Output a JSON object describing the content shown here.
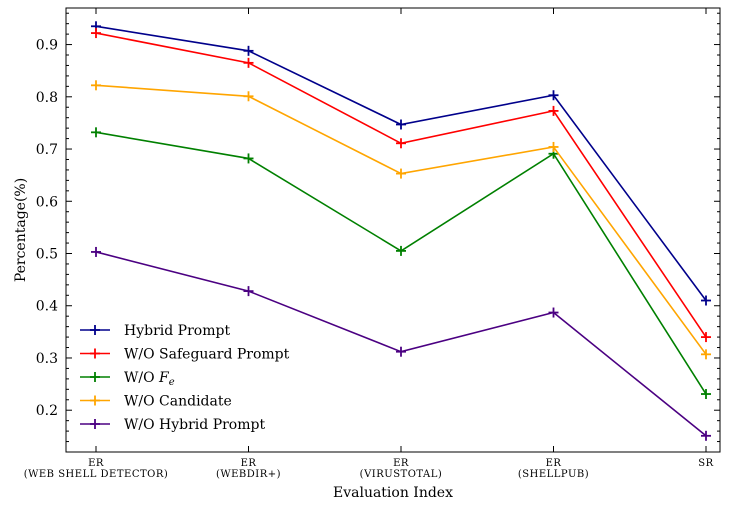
{
  "chart_data": {
    "type": "line",
    "categories": [
      [
        "ER",
        "(WEB SHELL DETECTOR)"
      ],
      [
        "ER",
        "(WEBDIR+)"
      ],
      [
        "ER",
        "(VIRUSTOTAL)"
      ],
      [
        "ER",
        "(SHELLPUB)"
      ],
      [
        "SR",
        ""
      ]
    ],
    "xlabel": "Evaluation Index",
    "ylabel": "Percentage(%)",
    "ylim": [
      0.12,
      0.97
    ],
    "yticks": [
      0.2,
      0.3,
      0.4,
      0.5,
      0.6,
      0.7,
      0.8,
      0.9
    ],
    "ytick_labels": [
      "0.2",
      "0.3",
      "0.4",
      "0.5",
      "0.6",
      "0.7",
      "0.8",
      "0.9"
    ],
    "legend_position": "lower-left",
    "grid": false,
    "series": [
      {
        "name": "Hybrid Prompt",
        "color": "#00008b",
        "values": [
          0.935,
          0.888,
          0.747,
          0.803,
          0.41
        ]
      },
      {
        "name": "W/O Safeguard Prompt",
        "color": "#ff0000",
        "values": [
          0.922,
          0.865,
          0.711,
          0.773,
          0.34
        ]
      },
      {
        "name": "W/O F_e",
        "color": "#008000",
        "values": [
          0.732,
          0.682,
          0.505,
          0.691,
          0.231
        ]
      },
      {
        "name": "W/O Candidate",
        "color": "#ffa500",
        "values": [
          0.822,
          0.801,
          0.653,
          0.704,
          0.307
        ]
      },
      {
        "name": "W/O Hybrid Prompt",
        "color": "#4b0082",
        "values": [
          0.503,
          0.428,
          0.312,
          0.387,
          0.151
        ]
      }
    ]
  }
}
